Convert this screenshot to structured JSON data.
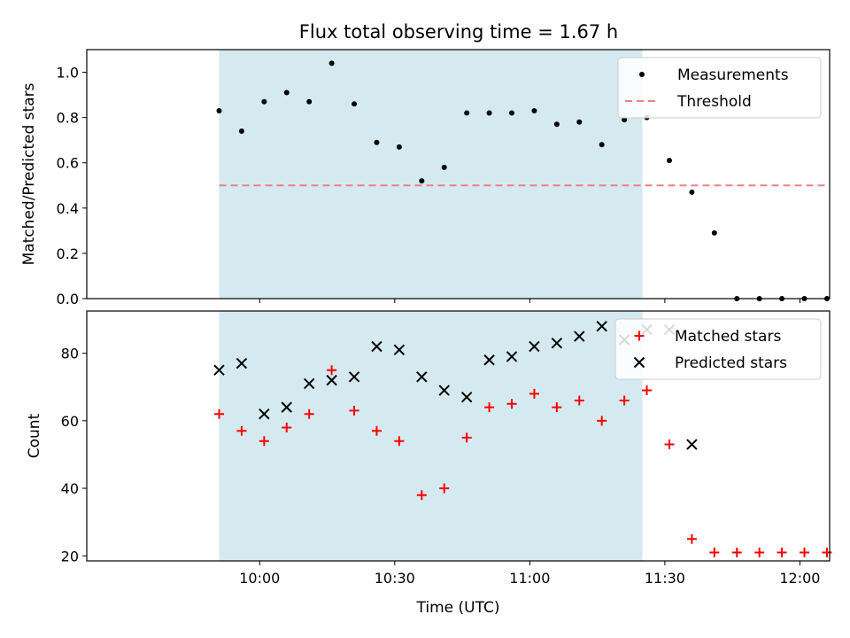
{
  "title": "Flux total observing time = 1.67 h",
  "colors": {
    "observing_span": "#d4eaf0",
    "measurement": "#000000",
    "threshold": "#f08080",
    "matched": "#ff0000",
    "predicted": "#000000",
    "frame": "#000000"
  },
  "chart_data": [
    {
      "type": "scatter",
      "ylabel": "Matched/Predicted stars",
      "xlabel": "",
      "x_unit": "minutes since 00:00 UTC",
      "xlim": [
        9.36,
        12.11
      ],
      "ylim": [
        0.0,
        1.1
      ],
      "yticks": [
        0.0,
        0.2,
        0.4,
        0.6,
        0.8,
        1.0
      ],
      "ytick_labels": [
        "0.0",
        "0.2",
        "0.4",
        "0.6",
        "0.8",
        "1.0"
      ],
      "xticks_shown_without_labels": true,
      "observing_span": [
        "09:51",
        "11:25"
      ],
      "legend": {
        "position": "top-right",
        "entries": [
          "Measurements",
          "Threshold"
        ]
      },
      "series": [
        {
          "name": "Measurements",
          "marker": "dot",
          "x": [
            "09:51",
            "09:56",
            "10:01",
            "10:06",
            "10:11",
            "10:16",
            "10:21",
            "10:26",
            "10:31",
            "10:36",
            "10:41",
            "10:46",
            "10:51",
            "10:56",
            "11:01",
            "11:06",
            "11:11",
            "11:16",
            "11:21",
            "11:26",
            "11:31",
            "11:36",
            "11:41",
            "11:46",
            "11:51",
            "11:56",
            "12:01",
            "12:06"
          ],
          "y": [
            0.83,
            0.74,
            0.87,
            0.91,
            0.87,
            1.04,
            0.86,
            0.69,
            0.67,
            0.52,
            0.58,
            0.82,
            0.82,
            0.82,
            0.83,
            0.77,
            0.78,
            0.68,
            0.79,
            0.8,
            0.61,
            0.47,
            0.29,
            0.0,
            0.0,
            0.0,
            0.0,
            0.0
          ]
        },
        {
          "name": "Threshold",
          "line": "dashed",
          "x": [
            "09:51",
            "12:06"
          ],
          "y": [
            0.5,
            0.5
          ]
        }
      ]
    },
    {
      "type": "scatter",
      "ylabel": "Count",
      "xlabel": "Time (UTC)",
      "xlim": [
        9.36,
        12.11
      ],
      "ylim": [
        18.5,
        92.5
      ],
      "yticks": [
        20,
        40,
        60,
        80
      ],
      "ytick_labels": [
        "20",
        "40",
        "60",
        "80"
      ],
      "xticks": [
        "10:00",
        "10:30",
        "11:00",
        "11:30",
        "12:00"
      ],
      "observing_span": [
        "09:51",
        "11:25"
      ],
      "legend": {
        "position": "top-right",
        "entries": [
          "Matched stars",
          "Predicted stars"
        ]
      },
      "series": [
        {
          "name": "Matched stars",
          "marker": "plus",
          "x": [
            "09:51",
            "09:56",
            "10:01",
            "10:06",
            "10:11",
            "10:16",
            "10:21",
            "10:26",
            "10:31",
            "10:36",
            "10:41",
            "10:46",
            "10:51",
            "10:56",
            "11:01",
            "11:06",
            "11:11",
            "11:16",
            "11:21",
            "11:26",
            "11:31",
            "11:36",
            "11:41",
            "11:46",
            "11:51",
            "11:56",
            "12:01",
            "12:06"
          ],
          "y": [
            62,
            57,
            54,
            58,
            62,
            75,
            63,
            57,
            54,
            38,
            40,
            55,
            64,
            65,
            68,
            64,
            66,
            60,
            66,
            69,
            53,
            25,
            21,
            21,
            21,
            21,
            21,
            21
          ]
        },
        {
          "name": "Predicted stars",
          "marker": "x",
          "x": [
            "09:51",
            "09:56",
            "10:01",
            "10:06",
            "10:11",
            "10:16",
            "10:21",
            "10:26",
            "10:31",
            "10:36",
            "10:41",
            "10:46",
            "10:51",
            "10:56",
            "11:01",
            "11:06",
            "11:11",
            "11:16",
            "11:21",
            "11:26",
            "11:31",
            "11:36"
          ],
          "y": [
            75,
            77,
            62,
            64,
            71,
            72,
            73,
            82,
            81,
            73,
            69,
            67,
            78,
            79,
            82,
            83,
            85,
            88,
            84,
            87,
            87,
            53
          ]
        }
      ]
    }
  ]
}
